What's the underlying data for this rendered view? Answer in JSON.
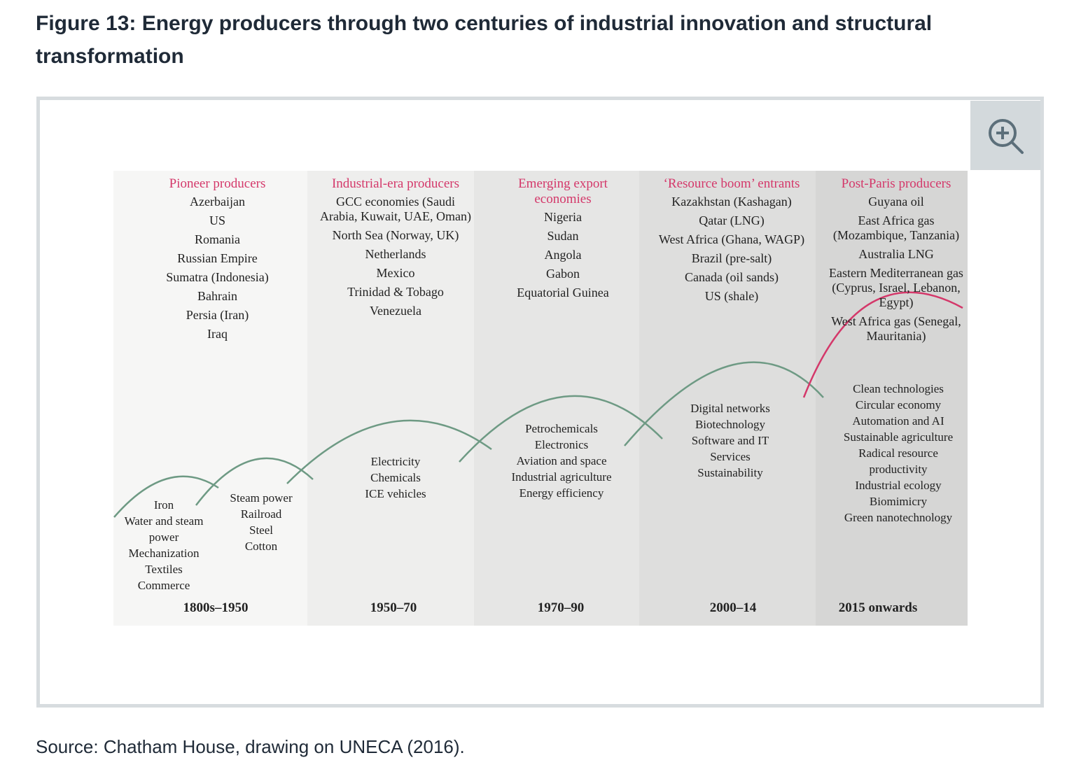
{
  "figure": {
    "title": "Figure 13: Energy producers through two centuries of industrial innovation and structural transformation",
    "source": "Source: Chatham House, drawing on UNECA (2016)."
  },
  "zoom_icon": "zoom-in-icon",
  "colors": {
    "heading": "#d4386a",
    "wave": "#6e9a84",
    "post_paris_wave": "#d4386a"
  },
  "columns": [
    {
      "heading": "Pioneer producers",
      "producers": [
        "Azerbaijan",
        "US",
        "Romania",
        "Russian Empire",
        "Sumatra (Indonesia)",
        "Bahrain",
        "Persia (Iran)",
        "Iraq"
      ],
      "period": "1800s–1950"
    },
    {
      "heading": "Industrial-era producers",
      "producers": [
        "GCC economies (Saudi Arabia, Kuwait, UAE, Oman)",
        "North Sea (Norway, UK)",
        "Netherlands",
        "Mexico",
        "Trinidad & Tobago",
        "Venezuela"
      ],
      "period": "1950–70"
    },
    {
      "heading": "Emerging export economies",
      "producers": [
        "Nigeria",
        "Sudan",
        "Angola",
        "Gabon",
        "Equatorial Guinea"
      ],
      "period": "1970–90"
    },
    {
      "heading": "‘Resource boom’ entrants",
      "producers": [
        "Kazakhstan (Kashagan)",
        "Qatar (LNG)",
        "West Africa (Ghana, WAGP)",
        "Brazil (pre-salt)",
        "Canada (oil sands)",
        "US (shale)"
      ],
      "period": "2000–14"
    },
    {
      "heading": "Post-Paris producers",
      "producers": [
        "Guyana oil",
        "East Africa gas (Mozambique, Tanzania)",
        "Australia LNG",
        "Eastern Mediterranean gas (Cyprus, Israel, Lebanon, Egypt)",
        "West Africa gas (Senegal, Mauritania)"
      ],
      "period": "2015 onwards"
    }
  ],
  "innovation_waves": [
    [
      "Iron",
      "Water and steam power",
      "Mechanization",
      "Textiles",
      "Commerce"
    ],
    [
      "Steam power",
      "Railroad",
      "Steel",
      "Cotton"
    ],
    [
      "Electricity",
      "Chemicals",
      "ICE vehicles"
    ],
    [
      "Petrochemicals",
      "Electronics",
      "Aviation and space",
      "Industrial agriculture",
      "Energy efficiency"
    ],
    [
      "Digital networks",
      "Biotechnology",
      "Software and IT Services",
      "Sustainability"
    ],
    [
      "Clean technologies",
      "Circular economy",
      "Automation and AI",
      "Sustainable agriculture",
      "Radical resource productivity",
      "Industrial ecology",
      "Biomimicry",
      "Green nanotechnology"
    ]
  ]
}
